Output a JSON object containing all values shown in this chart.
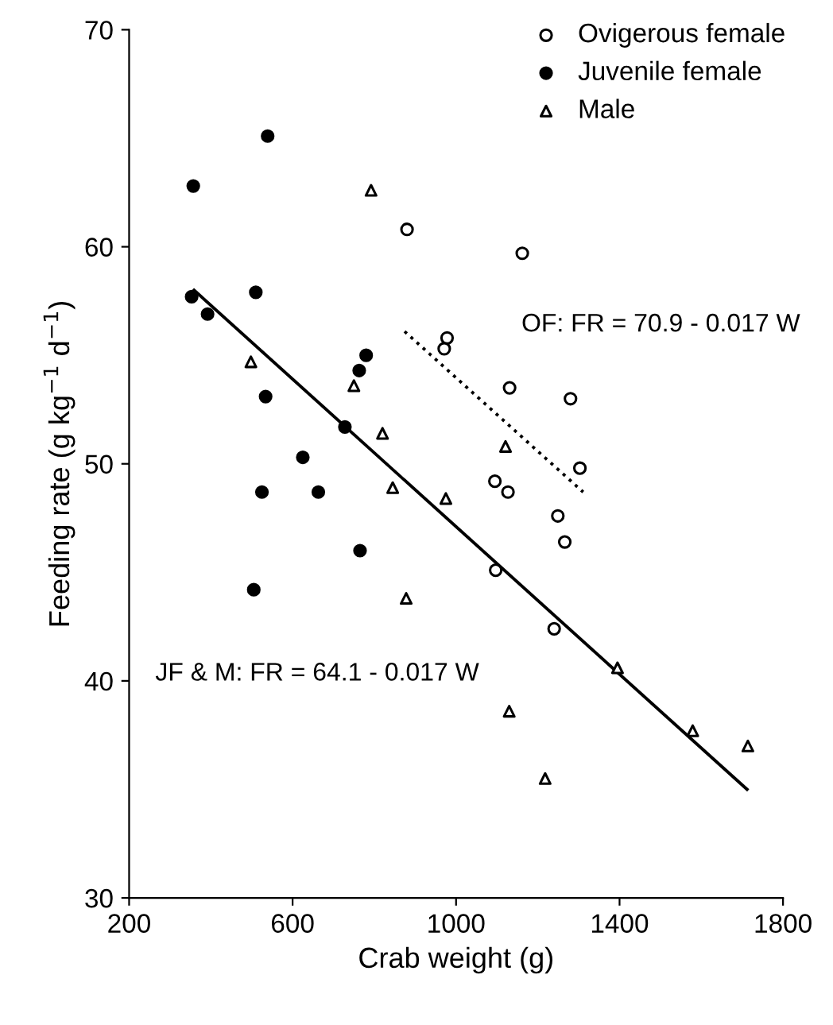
{
  "chart_data": {
    "type": "scatter",
    "xlabel": "Crab weight (g)",
    "ylabel": "Feeding rate (g kg$^{−1}$ d$^{−1}$)",
    "xlim": [
      200,
      1800
    ],
    "xticks": [
      200,
      600,
      1000,
      1400,
      1800
    ],
    "ylim": [
      30,
      70
    ],
    "yticks": [
      30,
      40,
      50,
      60,
      70
    ],
    "grid": false,
    "legend": "top right",
    "series": [
      {
        "name": "Ovigerous female",
        "color": "#ffffff",
        "marker": "circle",
        "x": [
          880,
          1162,
          978,
          971,
          1131,
          1280,
          1303,
          1095,
          1127,
          1249,
          1266,
          1097,
          1240
        ],
        "values": [
          60.8,
          59.7,
          55.8,
          55.3,
          53.5,
          53.0,
          49.8,
          49.2,
          48.7,
          47.6,
          46.4,
          45.1,
          42.4
        ]
      },
      {
        "name": "Juvenile female",
        "color": "#000000",
        "marker": "circle",
        "x": [
          539,
          357,
          353,
          510,
          392,
          780,
          763,
          534,
          728,
          625,
          525,
          663,
          765,
          505
        ],
        "values": [
          65.1,
          62.8,
          57.7,
          57.9,
          56.9,
          55.0,
          54.3,
          53.1,
          51.7,
          50.3,
          48.7,
          48.7,
          46.0,
          44.2
        ]
      },
      {
        "name": "Male",
        "color": "#ffffff",
        "marker": "triangle",
        "x": [
          792,
          498,
          750,
          820,
          1121,
          845,
          975,
          878,
          1395,
          1130,
          1579,
          1714,
          1218
        ],
        "values": [
          62.6,
          54.7,
          53.6,
          51.4,
          50.8,
          48.9,
          48.4,
          43.8,
          40.6,
          38.6,
          37.7,
          37.0,
          35.5
        ]
      },
      {
        "type": "line",
        "color": "#000000",
        "line_style": "dotted",
        "x": [
          874,
          1311
        ],
        "values": [
          56.1,
          48.7
        ]
      },
      {
        "type": "line",
        "color": "#000000",
        "line_style": "solid",
        "x": [
          359,
          1712
        ],
        "values": [
          58.0,
          35.0
        ]
      }
    ],
    "annotations": [
      "OF: FR = 70.9 - 0.017 W",
      "JF & M: FR = 64.1 - 0.017 W"
    ]
  }
}
